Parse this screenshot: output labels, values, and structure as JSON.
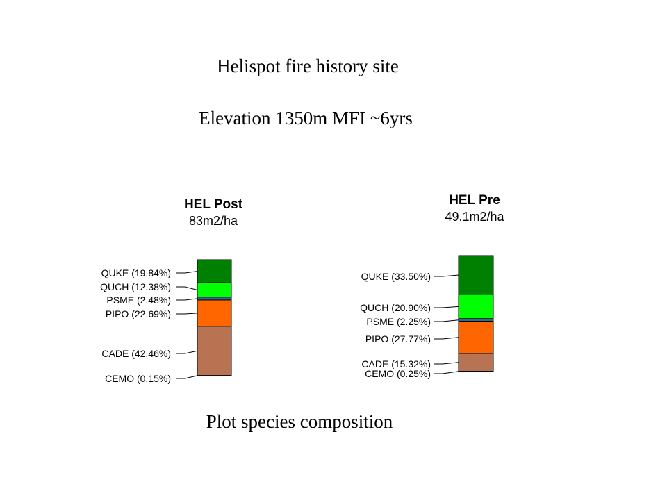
{
  "slide": {
    "title": "Helispot fire history site",
    "subtitle": "Elevation 1350m MFI ~6yrs",
    "caption": "Plot species composition"
  },
  "colors": {
    "QUKE": "#008000",
    "QUCH": "#00ff00",
    "PSME": "#336699",
    "PIPO": "#ff6600",
    "CADE": "#b87352",
    "CEMO": "#b87352"
  },
  "chart_data": [
    {
      "type": "bar",
      "stacked": true,
      "title": "HEL Post",
      "subtitle": "83m2/ha",
      "series": [
        {
          "name": "QUKE",
          "value": 19.84,
          "label": "QUKE (19.84%)"
        },
        {
          "name": "QUCH",
          "value": 12.38,
          "label": "QUCH (12.38%)"
        },
        {
          "name": "PSME",
          "value": 2.48,
          "label": "PSME (2.48%)"
        },
        {
          "name": "PIPO",
          "value": 22.69,
          "label": "PIPO (22.69%)"
        },
        {
          "name": "CADE",
          "value": 42.46,
          "label": "CADE (42.46%)"
        },
        {
          "name": "CEMO",
          "value": 0.15,
          "label": "CEMO (0.15%)"
        }
      ]
    },
    {
      "type": "bar",
      "stacked": true,
      "title": "HEL Pre",
      "subtitle": "49.1m2/ha",
      "series": [
        {
          "name": "QUKE",
          "value": 33.5,
          "label": "QUKE (33.50%)"
        },
        {
          "name": "QUCH",
          "value": 20.9,
          "label": "QUCH (20.90%)"
        },
        {
          "name": "PSME",
          "value": 2.25,
          "label": "PSME (2.25%)"
        },
        {
          "name": "PIPO",
          "value": 27.77,
          "label": "PIPO (27.77%)"
        },
        {
          "name": "CADE",
          "value": 15.32,
          "label": "CADE (15.32%)"
        },
        {
          "name": "CEMO",
          "value": 0.25,
          "label": "CEMO (0.25%)"
        }
      ]
    }
  ]
}
